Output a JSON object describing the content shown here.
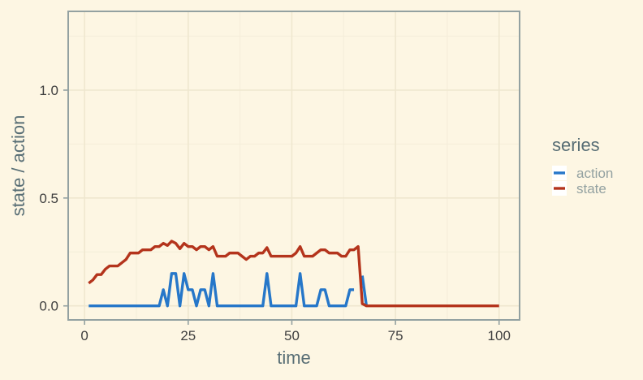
{
  "chart_data": {
    "type": "line",
    "title": "",
    "xlabel": "time",
    "ylabel": "state / action",
    "xlim": [
      -3.95,
      104.95
    ],
    "ylim": [
      -0.065,
      1.365
    ],
    "xticks": [
      0,
      25,
      50,
      75,
      100
    ],
    "xtick_labels": [
      "0",
      "25",
      "50",
      "75",
      "100"
    ],
    "yticks": [
      0.0,
      0.5,
      1.0
    ],
    "ytick_labels": [
      "0.0",
      "0.5",
      "1.0"
    ],
    "grid": true,
    "legend": {
      "title": "series",
      "placement": "right"
    },
    "series": [
      {
        "name": "action",
        "color": "#2677c9",
        "x": [
          1,
          2,
          3,
          4,
          5,
          6,
          7,
          8,
          9,
          10,
          11,
          12,
          13,
          14,
          15,
          16,
          17,
          18,
          19,
          20,
          21,
          22,
          23,
          24,
          25,
          26,
          27,
          28,
          29,
          30,
          31,
          32,
          33,
          34,
          35,
          36,
          37,
          38,
          39,
          40,
          41,
          42,
          43,
          44,
          45,
          46,
          47,
          48,
          49,
          50,
          51,
          52,
          53,
          54,
          55,
          56,
          57,
          58,
          59,
          60,
          61,
          62,
          63,
          64,
          65,
          null,
          67,
          68
        ],
        "y": [
          0,
          0,
          0,
          0,
          0,
          0,
          0,
          0,
          0,
          0,
          0,
          0,
          0,
          0,
          0,
          0,
          0,
          0,
          0.075,
          0,
          0.15,
          0.15,
          0,
          0.15,
          0.075,
          0.075,
          0,
          0.075,
          0.075,
          0,
          0.15,
          0,
          0,
          0,
          0,
          0,
          0,
          0,
          0,
          0,
          0,
          0,
          0,
          0.15,
          0,
          0,
          0,
          0,
          0,
          0,
          0,
          0.15,
          0,
          0,
          0,
          0,
          0.075,
          0.075,
          0,
          0,
          0,
          0,
          0,
          0.075,
          0.075,
          null,
          0.14,
          0
        ]
      },
      {
        "name": "state",
        "color": "#b4341c",
        "x": [
          1,
          2,
          3,
          4,
          5,
          6,
          7,
          8,
          9,
          10,
          11,
          12,
          13,
          14,
          15,
          16,
          17,
          18,
          19,
          20,
          21,
          22,
          23,
          24,
          25,
          26,
          27,
          28,
          29,
          30,
          31,
          32,
          33,
          34,
          35,
          36,
          37,
          38,
          39,
          40,
          41,
          42,
          43,
          44,
          45,
          46,
          47,
          48,
          49,
          50,
          51,
          52,
          53,
          54,
          55,
          56,
          57,
          58,
          59,
          60,
          61,
          62,
          63,
          64,
          65,
          66,
          67,
          68,
          70,
          75,
          80,
          85,
          90,
          95,
          100
        ],
        "y": [
          0.105,
          0.12,
          0.145,
          0.145,
          0.17,
          0.185,
          0.185,
          0.185,
          0.2,
          0.215,
          0.245,
          0.245,
          0.245,
          0.26,
          0.26,
          0.26,
          0.275,
          0.275,
          0.29,
          0.28,
          0.3,
          0.29,
          0.265,
          0.29,
          0.275,
          0.275,
          0.26,
          0.275,
          0.275,
          0.26,
          0.275,
          0.23,
          0.23,
          0.23,
          0.245,
          0.245,
          0.245,
          0.23,
          0.215,
          0.23,
          0.23,
          0.245,
          0.245,
          0.27,
          0.23,
          0.23,
          0.23,
          0.23,
          0.23,
          0.23,
          0.245,
          0.275,
          0.23,
          0.23,
          0.23,
          0.245,
          0.26,
          0.26,
          0.245,
          0.245,
          0.245,
          0.23,
          0.23,
          0.26,
          0.26,
          0.275,
          0.01,
          0,
          0,
          0,
          0,
          0,
          0,
          0,
          0
        ]
      }
    ]
  }
}
